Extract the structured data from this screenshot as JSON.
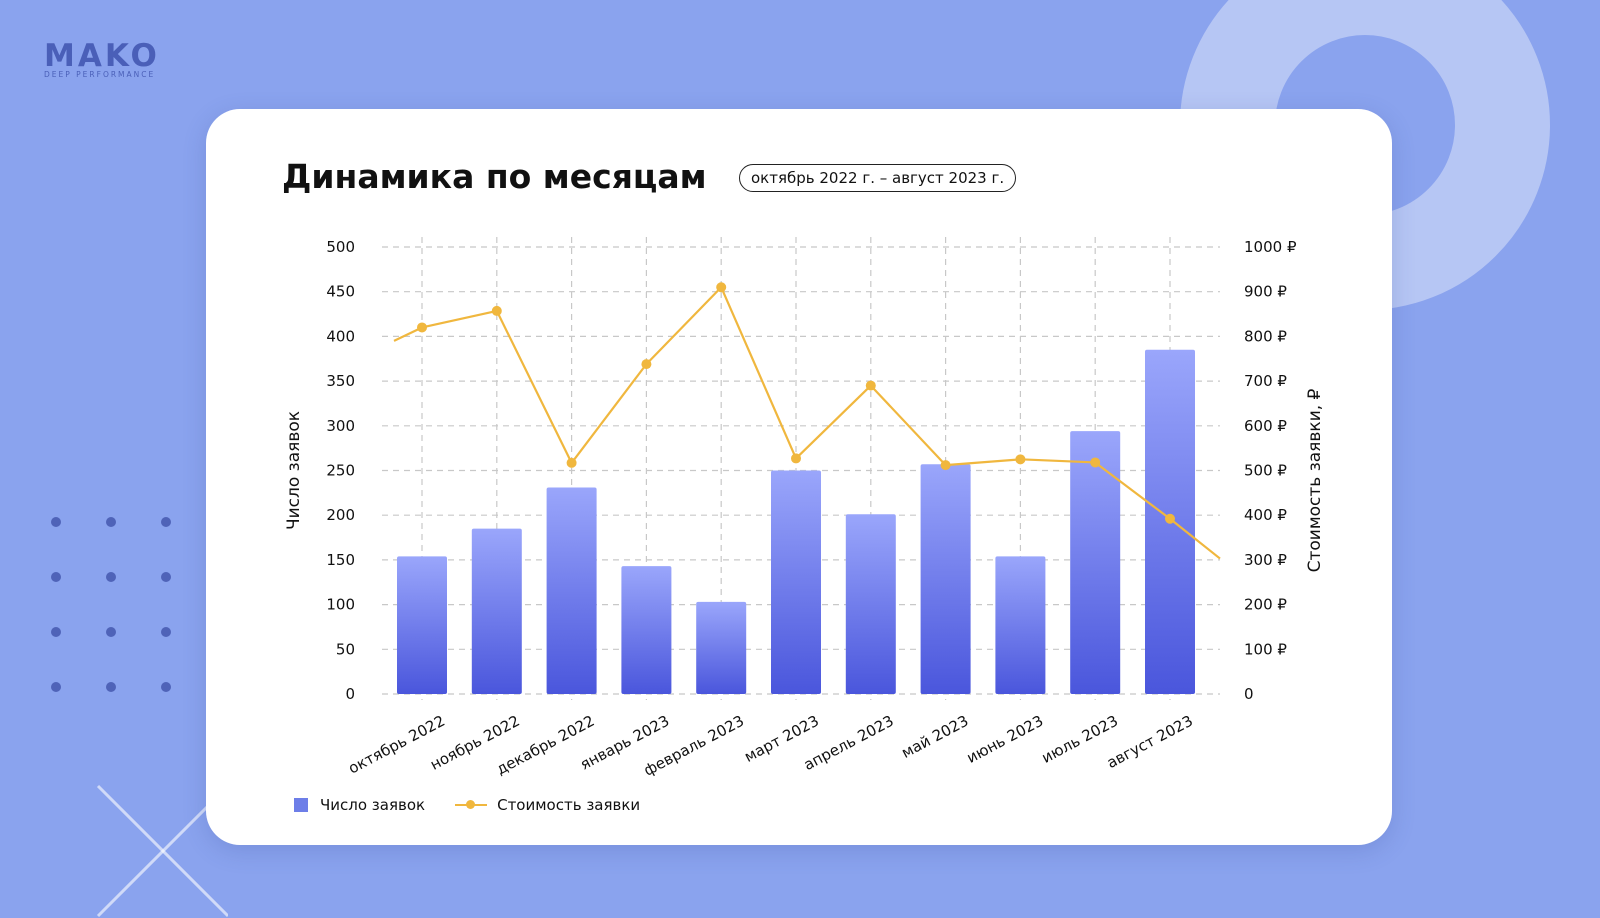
{
  "logo": {
    "name": "MAKO",
    "tagline": "DEEP PERFORMANCE"
  },
  "card": {
    "title": "Динамика по месяцам",
    "period": "октябрь 2022 г. – август 2023 г."
  },
  "colors": {
    "background": "#8aa3ee",
    "bar_top": "#9aa6fb",
    "bar_bottom": "#4a56dc",
    "line": "#f0b73e",
    "legend_bar": "#6d7ee8"
  },
  "legend": {
    "bars_label": "Число заявок",
    "line_label": "Стоимость заявки"
  },
  "chart_data": {
    "type": "bar+line",
    "categories": [
      "октябрь 2022",
      "ноябрь 2022",
      "декабрь 2022",
      "январь 2023",
      "февраль 2023",
      "март 2023",
      "апрель 2023",
      "май 2023",
      "июнь 2023",
      "июль 2023",
      "август 2023"
    ],
    "series": [
      {
        "name": "Число заявок",
        "type": "bar",
        "axis": "left",
        "values": [
          154,
          185,
          231,
          143,
          103,
          250,
          201,
          257,
          154,
          294,
          385
        ]
      },
      {
        "name": "Стоимость заявки",
        "type": "line",
        "axis": "right",
        "values": [
          820,
          857,
          517,
          738,
          910,
          527,
          690,
          512,
          525,
          518,
          392
        ],
        "start_value": 790,
        "end_value": 303
      }
    ],
    "ylabel": "Число заявок",
    "y2label": "Стоимость заявки, ₽",
    "ylim": [
      0,
      500
    ],
    "y2lim": [
      0,
      1000
    ],
    "yticks": [
      "0",
      "50",
      "100",
      "150",
      "200",
      "250",
      "300",
      "350",
      "400",
      "450",
      "500"
    ],
    "y2ticks": [
      "0",
      "100 ₽",
      "200 ₽",
      "300 ₽",
      "400 ₽",
      "500 ₽",
      "600 ₽",
      "700 ₽",
      "800 ₽",
      "900 ₽",
      "1000 ₽"
    ],
    "grid": true,
    "legend_position": "bottom-left"
  }
}
